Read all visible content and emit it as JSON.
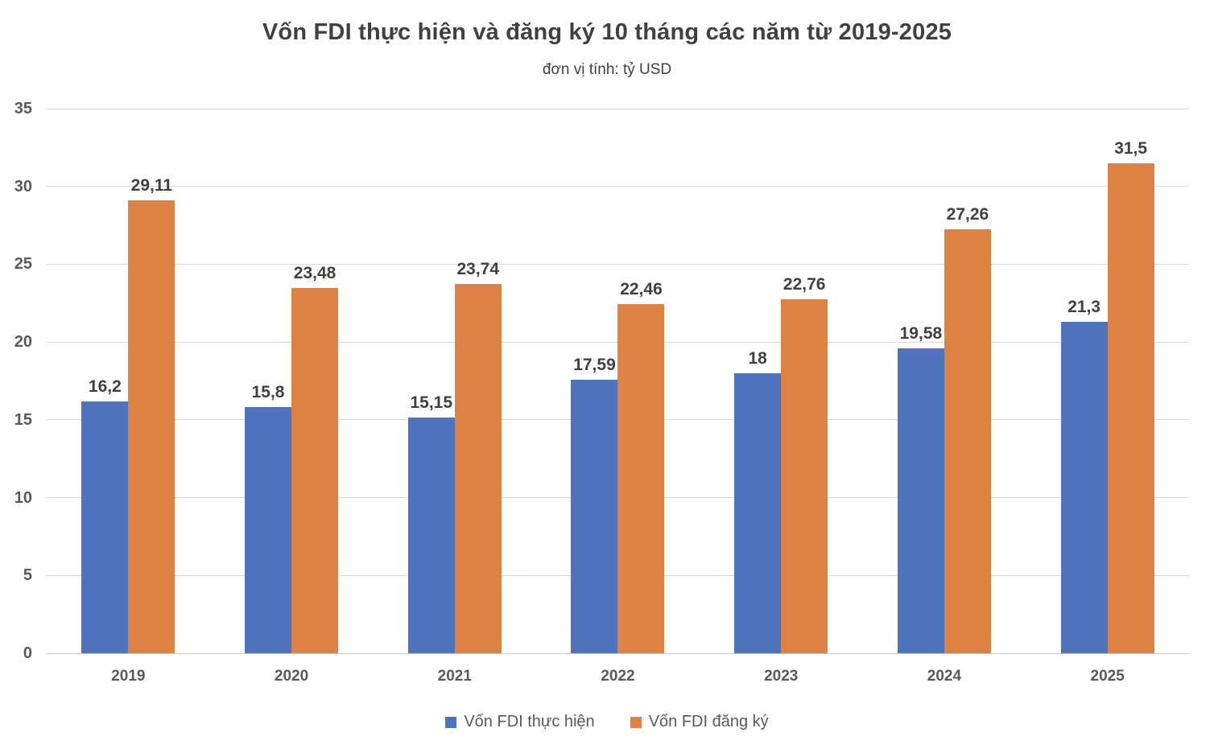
{
  "chart": {
    "title": "Vốn FDI thực hiện và đăng ký 10 tháng các năm từ 2019-2025",
    "subtitle": "đơn vị tính: tỷ USD"
  },
  "chart_data": {
    "type": "bar",
    "categories": [
      "2019",
      "2020",
      "2021",
      "2022",
      "2023",
      "2024",
      "2025"
    ],
    "series": [
      {
        "name": "Vốn FDI thực hiện",
        "slug": "von-fdi-thuc-hien",
        "color": "#4F74BD",
        "values": [
          16.2,
          15.8,
          15.15,
          17.59,
          18,
          19.58,
          21.3
        ],
        "labels": [
          "16,2",
          "15,8",
          "15,15",
          "17,59",
          "18",
          "19,58",
          "21,3"
        ]
      },
      {
        "name": "Vốn FDI đăng ký",
        "slug": "von-fdi-dang-ky",
        "color": "#DD8244",
        "values": [
          29.11,
          23.48,
          23.74,
          22.46,
          22.76,
          27.26,
          31.5
        ],
        "labels": [
          "29,11",
          "23,48",
          "23,74",
          "22,46",
          "22,76",
          "27,26",
          "31,5"
        ]
      }
    ],
    "ylim": [
      0,
      35
    ],
    "yticks": [
      0,
      5,
      10,
      15,
      20,
      25,
      30,
      35
    ],
    "grid": true,
    "legend_position": "bottom"
  },
  "colors": {
    "series_blue": "#4F74BD",
    "series_orange": "#DD8244",
    "gridline": "#D9D9D9",
    "axis_line": "#C6C6C6",
    "title_text": "#404040",
    "value_label_text": "#404040",
    "tick_text": "#595959",
    "background": "#FFFFFF"
  }
}
